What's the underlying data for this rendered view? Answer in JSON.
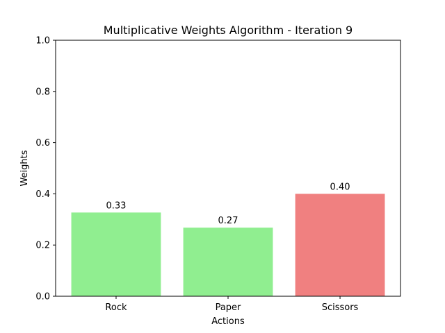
{
  "chart_data": {
    "type": "bar",
    "title": "Multiplicative Weights Algorithm - Iteration 9",
    "xlabel": "Actions",
    "ylabel": "Weights",
    "ylim": [
      0,
      1.0
    ],
    "yticks": [
      0.0,
      0.2,
      0.4,
      0.6,
      0.8,
      1.0
    ],
    "ytick_labels": [
      "0.0",
      "0.2",
      "0.4",
      "0.6",
      "0.8",
      "1.0"
    ],
    "categories": [
      "Rock",
      "Paper",
      "Scissors"
    ],
    "values": [
      0.327,
      0.268,
      0.4
    ],
    "value_labels": [
      "0.33",
      "0.27",
      "0.40"
    ],
    "colors": [
      "#90ee90",
      "#90ee90",
      "#f08080"
    ],
    "grid": false,
    "legend": "none"
  }
}
